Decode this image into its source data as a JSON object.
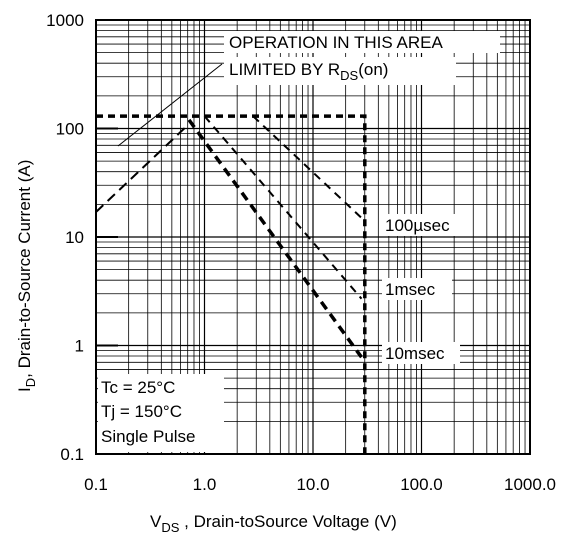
{
  "chart_data": {
    "type": "line",
    "title": "",
    "x_scale": "log",
    "y_scale": "log",
    "xlim": [
      0.1,
      1000
    ],
    "ylim": [
      0.1,
      1000
    ],
    "x_ticks": [
      "0.1",
      "1.0",
      "10.0",
      "100.0",
      "1000.0"
    ],
    "y_ticks": [
      "0.1",
      "1",
      "10",
      "100",
      "1000"
    ],
    "xlabel": {
      "main": "V",
      "sub": "DS",
      "rest": " , Drain-toSource Voltage (V)"
    },
    "ylabel": {
      "main": "I",
      "sub": "D",
      "rest": ",  Drain-to-Source Current (A)"
    },
    "grid": true,
    "annotations": {
      "area_line1": "OPERATION IN THIS AREA",
      "area_line2_main": "LIMITED BY R",
      "area_line2_sub": "DS",
      "area_line2_rest": "(on)",
      "conditions": [
        "Tc = 25°C",
        "Tj = 150°C",
        "Single Pulse"
      ]
    },
    "series": [
      {
        "name": "100µsec",
        "x": [
          2.8,
          28
        ],
        "y": [
          130,
          15
        ]
      },
      {
        "name": "1msec",
        "x": [
          1.0,
          28
        ],
        "y": [
          130,
          2.7
        ]
      },
      {
        "name": "10msec",
        "x": [
          0.72,
          28
        ],
        "y": [
          120,
          0.78
        ]
      },
      {
        "x": [
          0.1,
          0.72
        ],
        "y": [
          17,
          110
        ]
      },
      {
        "x": [
          0.1,
          30,
          30
        ],
        "y": [
          130,
          130,
          0.1
        ]
      }
    ],
    "colors": {
      "line": "#000000",
      "grid": "#000000",
      "background": "#ffffff"
    }
  }
}
